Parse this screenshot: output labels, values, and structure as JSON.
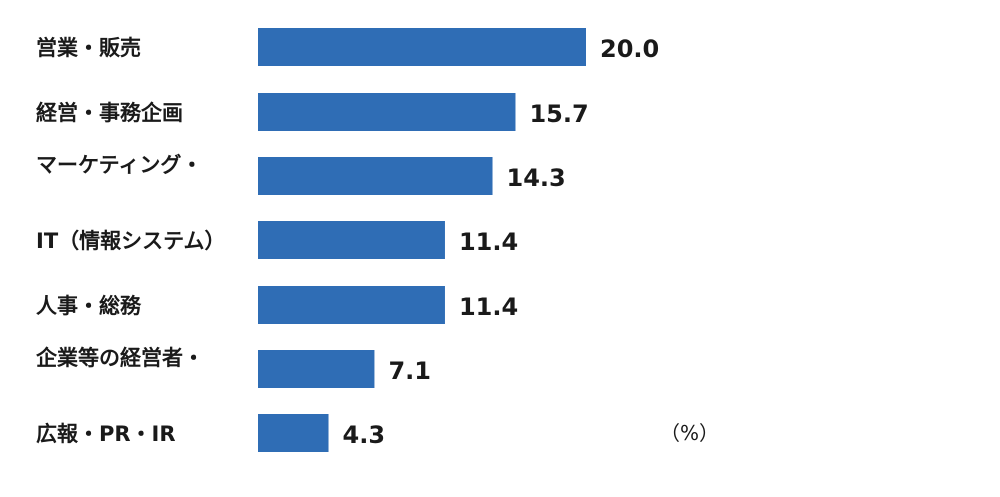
{
  "chart_data": {
    "type": "bar",
    "orientation": "horizontal",
    "categories": [
      "営業・販売",
      "経営・事務企画",
      "マーケティング・",
      "IT（情報システム）",
      "人事・総務",
      "企業等の経営者・",
      "広報・PR・IR"
    ],
    "values": [
      20.0,
      15.7,
      14.3,
      11.4,
      11.4,
      7.1,
      4.3
    ],
    "value_labels": [
      "20.0",
      "15.7",
      "14.3",
      "11.4",
      "11.4",
      "7.1",
      "4.3"
    ],
    "unit": "（%）",
    "xlim": [
      0,
      20.0
    ],
    "grid": false,
    "bar_color": "#2f6db5"
  }
}
